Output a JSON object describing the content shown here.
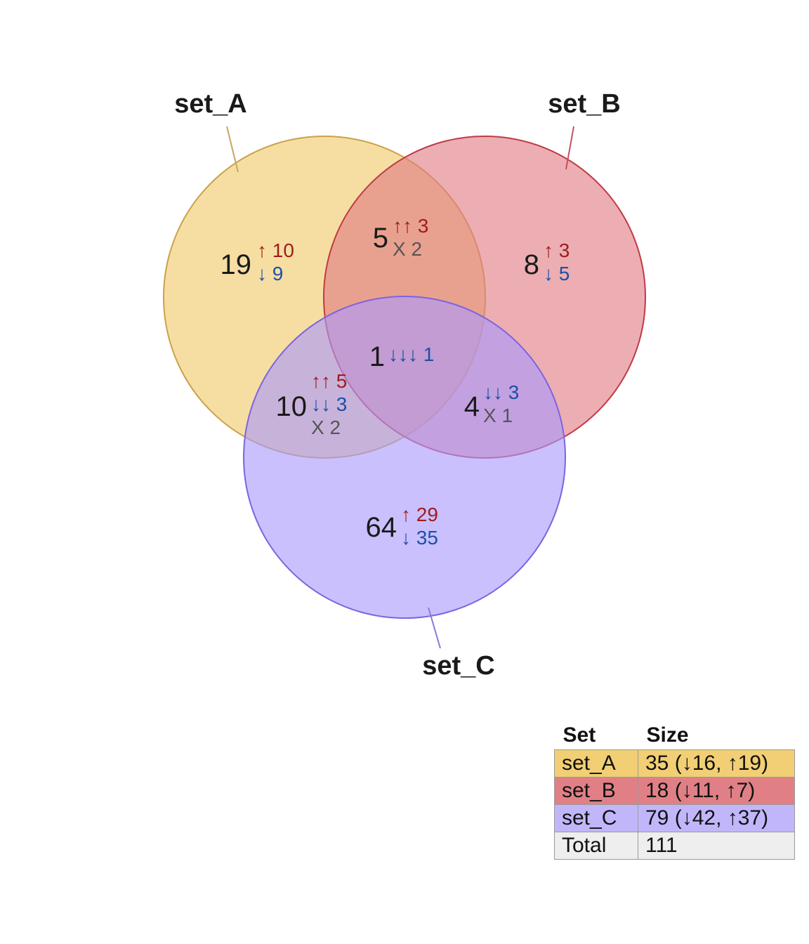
{
  "sets": [
    {
      "name": "set_A",
      "color": "#f0c96a",
      "stroke": "#c9a24a",
      "label_line": "#c9a65f"
    },
    {
      "name": "set_B",
      "color": "#e17c82",
      "stroke": "#c03a45",
      "label_line": "#c0525c"
    },
    {
      "name": "set_C",
      "color": "#a99afc",
      "stroke": "#7c64e0",
      "label_line": "#8a7ad8"
    }
  ],
  "regions": [
    {
      "id": "A_only",
      "count": "19",
      "lines": [
        {
          "arrow": "↑",
          "n": "10",
          "kind": "up"
        },
        {
          "arrow": "↓",
          "n": "9",
          "kind": "down"
        }
      ]
    },
    {
      "id": "B_only",
      "count": "8",
      "lines": [
        {
          "arrow": "↑",
          "n": "3",
          "kind": "up"
        },
        {
          "arrow": "↓",
          "n": "5",
          "kind": "down"
        }
      ]
    },
    {
      "id": "AB",
      "count": "5",
      "lines": [
        {
          "arrow": "↑↑",
          "n": "3",
          "kind": "up"
        },
        {
          "arrow": "X",
          "n": "2",
          "kind": "mixed"
        }
      ]
    },
    {
      "id": "ABC",
      "count": "1",
      "lines": [
        {
          "arrow": "↓↓↓",
          "n": "1",
          "kind": "down"
        }
      ]
    },
    {
      "id": "AC",
      "count": "10",
      "lines": [
        {
          "arrow": "↑↑",
          "n": "5",
          "kind": "up"
        },
        {
          "arrow": "↓↓",
          "n": "3",
          "kind": "down"
        },
        {
          "arrow": "X",
          "n": "2",
          "kind": "mixed"
        }
      ]
    },
    {
      "id": "BC",
      "count": "4",
      "lines": [
        {
          "arrow": "↓↓",
          "n": "3",
          "kind": "down"
        },
        {
          "arrow": "X",
          "n": "1",
          "kind": "mixed"
        }
      ]
    },
    {
      "id": "C_only",
      "count": "64",
      "lines": [
        {
          "arrow": "↑",
          "n": "29",
          "kind": "up"
        },
        {
          "arrow": "↓",
          "n": "35",
          "kind": "down"
        }
      ]
    }
  ],
  "legend": {
    "headers": [
      "Set",
      "Size"
    ],
    "rows": [
      {
        "set": "set_A",
        "size": "35 (↓16, ↑19)",
        "color": "#f2cf74"
      },
      {
        "set": "set_B",
        "size": "18 (↓11, ↑7)",
        "color": "#e08086"
      },
      {
        "set": "set_C",
        "size": "79 (↓42, ↑37)",
        "color": "#c2b6fb"
      },
      {
        "set": "Total",
        "size": "111",
        "color": "#eeeeee"
      }
    ]
  }
}
